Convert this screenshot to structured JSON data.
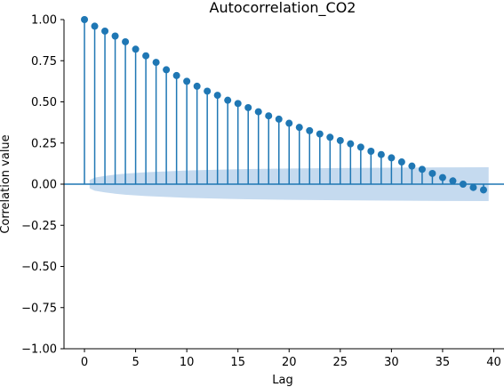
{
  "chart_data": {
    "type": "stem",
    "title": "Autocorrelation_CO2",
    "xlabel": "Lag",
    "ylabel": "Correlation value",
    "xlim": [
      -2,
      41
    ],
    "ylim": [
      -1.0,
      1.0
    ],
    "xticks": [
      0,
      5,
      10,
      15,
      20,
      25,
      30,
      35,
      40
    ],
    "yticks": [
      -1.0,
      -0.75,
      -0.5,
      -0.25,
      0.0,
      0.25,
      0.5,
      0.75,
      1.0
    ],
    "ytick_labels": [
      "−1.00",
      "−0.75",
      "−0.50",
      "−0.25",
      "0.00",
      "0.25",
      "0.50",
      "0.75",
      "1.00"
    ],
    "xtick_labels": [
      "0",
      "5",
      "10",
      "15",
      "20",
      "25",
      "30",
      "35",
      "40"
    ],
    "grid": false,
    "colors": {
      "stem": "#1f77b4",
      "band": "#c5daef",
      "zero_line": "#1f77b4"
    },
    "series": [
      {
        "lags": [
          0,
          1,
          2,
          3,
          4,
          5,
          6,
          7,
          8,
          9,
          10,
          11,
          12,
          13,
          14,
          15,
          16,
          17,
          18,
          19,
          20,
          21,
          22,
          23,
          24,
          25,
          26,
          27,
          28,
          29,
          30,
          31,
          32,
          33,
          34,
          35,
          36,
          37,
          38,
          39
        ],
        "values": [
          1.0,
          0.96,
          0.93,
          0.9,
          0.865,
          0.82,
          0.78,
          0.74,
          0.695,
          0.66,
          0.625,
          0.595,
          0.565,
          0.54,
          0.51,
          0.49,
          0.465,
          0.44,
          0.415,
          0.395,
          0.37,
          0.345,
          0.325,
          0.305,
          0.285,
          0.265,
          0.245,
          0.225,
          0.2,
          0.18,
          0.16,
          0.135,
          0.11,
          0.09,
          0.065,
          0.04,
          0.02,
          0.0,
          -0.02,
          -0.035
        ]
      }
    ],
    "confidence_band": {
      "lags": [
        0.5,
        1,
        2,
        3,
        4,
        6,
        8,
        10,
        13,
        16,
        20,
        25,
        30,
        35,
        39.5
      ],
      "upper": [
        0.025,
        0.04,
        0.05,
        0.058,
        0.064,
        0.072,
        0.078,
        0.083,
        0.088,
        0.092,
        0.095,
        0.098,
        0.1,
        0.102,
        0.103
      ]
    }
  }
}
